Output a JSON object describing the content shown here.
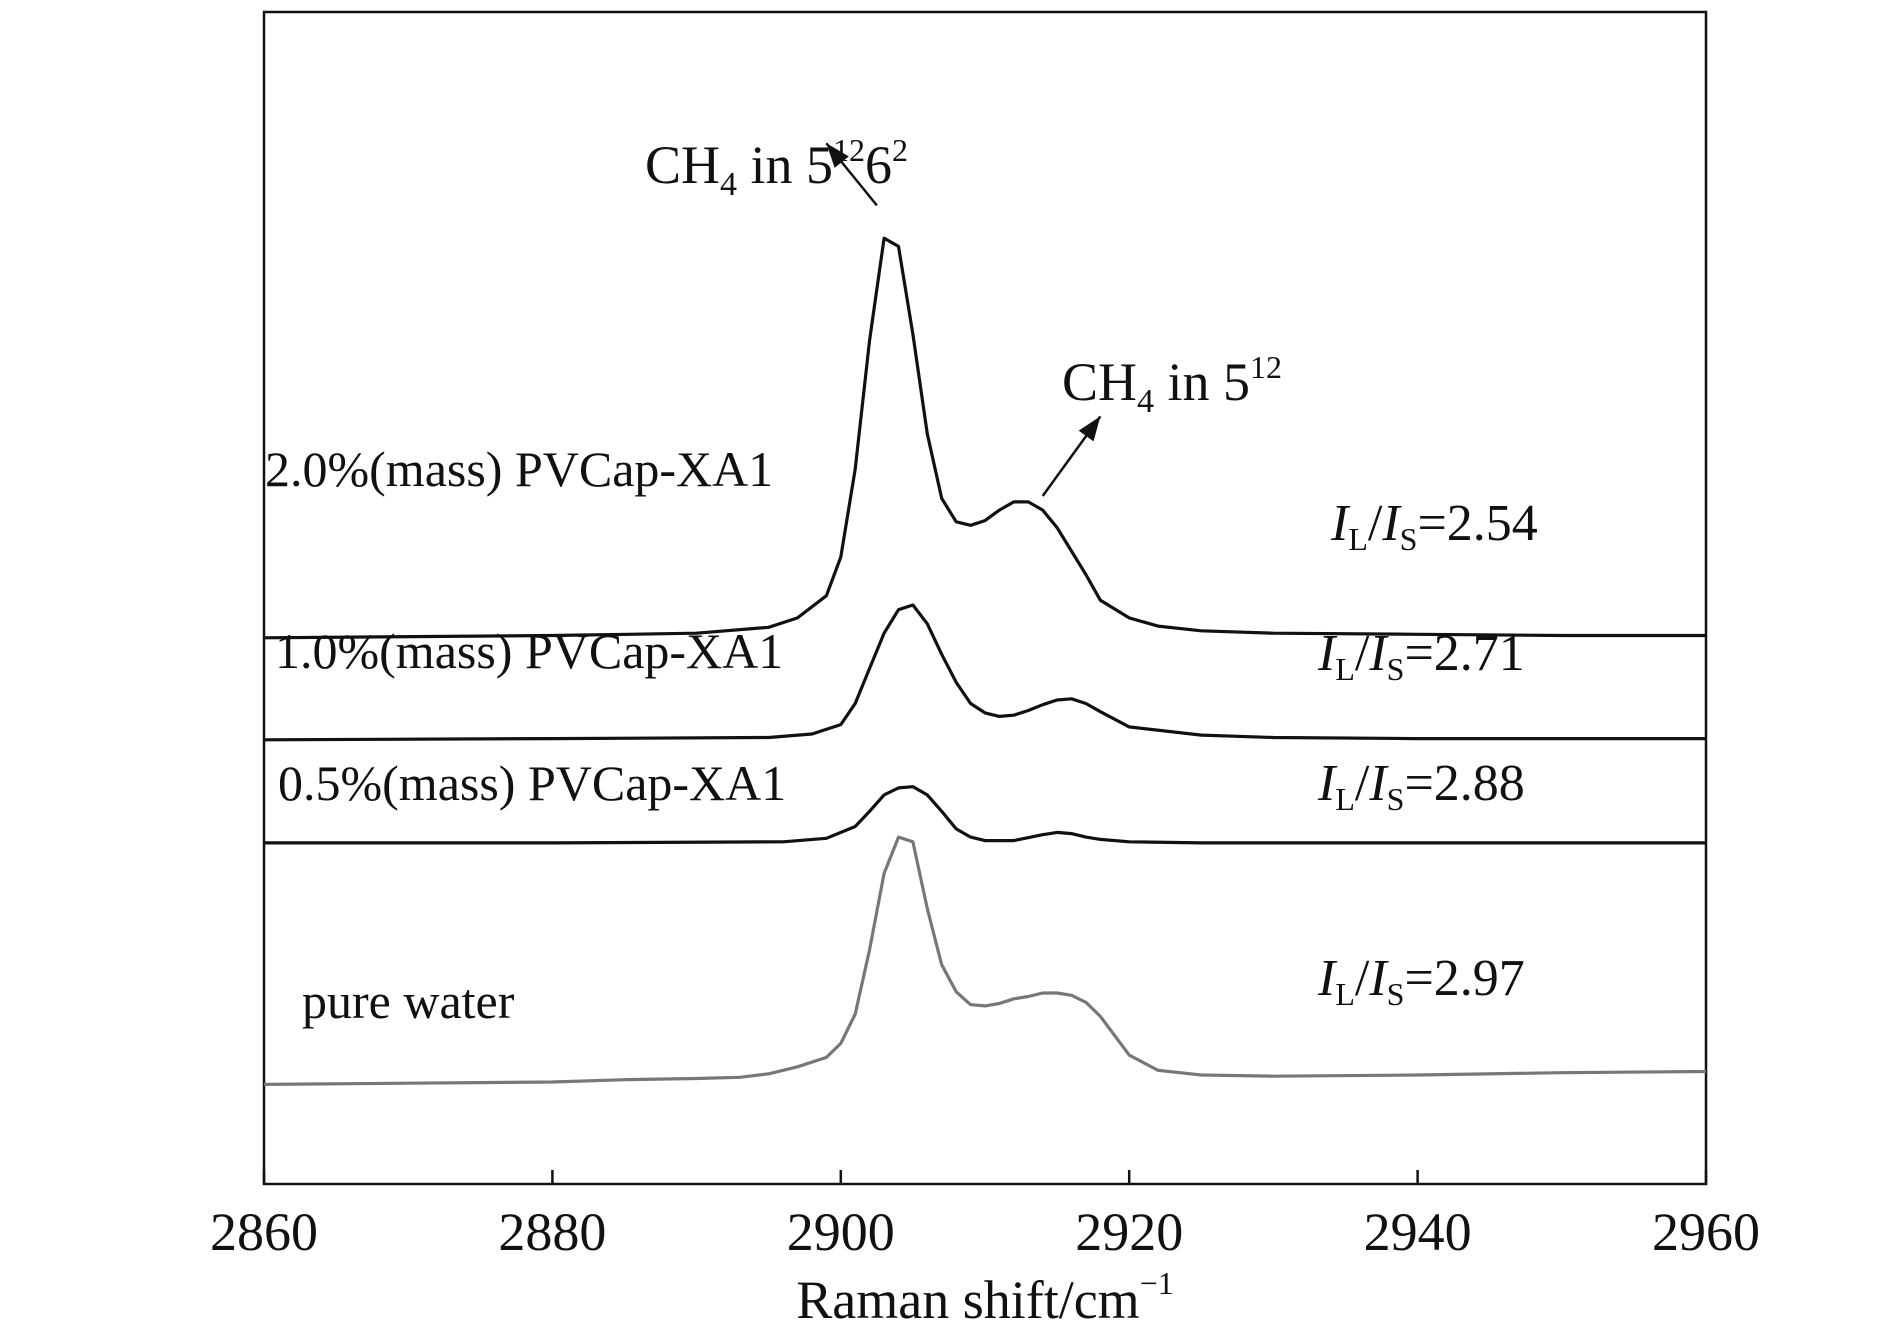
{
  "chart_data": {
    "type": "line",
    "title": "",
    "xlabel": "Raman shift/cm",
    "xlabel_superscript": "−1",
    "ylabel": "",
    "xlim": [
      2860,
      2960
    ],
    "ylim": [
      0,
      1
    ],
    "xticks": [
      2860,
      2880,
      2900,
      2920,
      2940,
      2960
    ],
    "xtick_labels": [
      "2860",
      "2880",
      "2900",
      "2920",
      "2940",
      "2960"
    ],
    "grid": false,
    "series": [
      {
        "name": "2.0%(mass) PVCap-XA1",
        "color": "#111111",
        "ratio_prefix": {
          "I1": "I",
          "sub1": "L",
          "slash": "/",
          "I2": "I",
          "sub2": "S"
        },
        "ratio_value": "=2.54",
        "x": [
          2860,
          2880,
          2890,
          2895,
          2897,
          2899,
          2900,
          2901,
          2902,
          2903,
          2904,
          2905,
          2906,
          2907,
          2908,
          2909,
          2910,
          2911,
          2912,
          2913,
          2914,
          2915,
          2916,
          2917,
          2918,
          2920,
          2922,
          2925,
          2930,
          2940,
          2950,
          2960
        ],
        "y": [
          0.466,
          0.468,
          0.47,
          0.475,
          0.483,
          0.502,
          0.535,
          0.61,
          0.72,
          0.807,
          0.8,
          0.725,
          0.64,
          0.585,
          0.565,
          0.562,
          0.566,
          0.575,
          0.582,
          0.582,
          0.575,
          0.56,
          0.54,
          0.52,
          0.498,
          0.483,
          0.476,
          0.472,
          0.47,
          0.469,
          0.468,
          0.468
        ]
      },
      {
        "name": "1.0%(mass) PVCap-XA1",
        "color": "#111111",
        "ratio_prefix": {
          "I1": "I",
          "sub1": "L",
          "slash": "/",
          "I2": "I",
          "sub2": "S"
        },
        "ratio_value": "=2.71",
        "x": [
          2860,
          2880,
          2895,
          2898,
          2900,
          2901,
          2902,
          2903,
          2904,
          2905,
          2906,
          2907,
          2908,
          2909,
          2910,
          2911,
          2912,
          2913,
          2914,
          2915,
          2916,
          2917,
          2918,
          2920,
          2925,
          2930,
          2940,
          2960
        ],
        "y": [
          0.379,
          0.38,
          0.381,
          0.384,
          0.392,
          0.41,
          0.44,
          0.47,
          0.49,
          0.494,
          0.478,
          0.452,
          0.428,
          0.41,
          0.402,
          0.399,
          0.4,
          0.404,
          0.409,
          0.413,
          0.414,
          0.41,
          0.403,
          0.39,
          0.383,
          0.381,
          0.38,
          0.38
        ]
      },
      {
        "name": "0.5%(mass) PVCap-XA1",
        "color": "#111111",
        "ratio_prefix": {
          "I1": "I",
          "sub1": "L",
          "slash": "/",
          "I2": "I",
          "sub2": "S"
        },
        "ratio_value": "=2.88",
        "x": [
          2860,
          2880,
          2896,
          2899,
          2901,
          2902,
          2903,
          2904,
          2905,
          2906,
          2907,
          2908,
          2909,
          2910,
          2912,
          2914,
          2915,
          2916,
          2917,
          2918,
          2920,
          2925,
          2930,
          2960
        ],
        "y": [
          0.291,
          0.291,
          0.292,
          0.295,
          0.305,
          0.318,
          0.332,
          0.338,
          0.339,
          0.332,
          0.318,
          0.303,
          0.296,
          0.293,
          0.293,
          0.298,
          0.3,
          0.299,
          0.296,
          0.294,
          0.292,
          0.291,
          0.291,
          0.291
        ]
      },
      {
        "name": "pure water",
        "color": "#777777",
        "ratio_prefix": {
          "I1": "I",
          "sub1": "L",
          "slash": "/",
          "I2": "I",
          "sub2": "S"
        },
        "ratio_value": "=2.97",
        "x": [
          2860,
          2870,
          2880,
          2885,
          2890,
          2893,
          2895,
          2897,
          2899,
          2900,
          2901,
          2902,
          2903,
          2904,
          2905,
          2906,
          2907,
          2908,
          2909,
          2910,
          2911,
          2912,
          2913,
          2914,
          2915,
          2916,
          2917,
          2918,
          2920,
          2922,
          2925,
          2930,
          2940,
          2950,
          2960
        ],
        "y": [
          0.085,
          0.086,
          0.087,
          0.089,
          0.09,
          0.091,
          0.094,
          0.1,
          0.108,
          0.12,
          0.145,
          0.2,
          0.265,
          0.296,
          0.292,
          0.235,
          0.187,
          0.164,
          0.153,
          0.152,
          0.154,
          0.158,
          0.16,
          0.163,
          0.163,
          0.161,
          0.155,
          0.143,
          0.11,
          0.097,
          0.093,
          0.092,
          0.093,
          0.095,
          0.096
        ]
      }
    ],
    "annotations": [
      {
        "id": "peak-large-cage",
        "prefix": "CH",
        "sub": "4",
        "text": " in 5",
        "sup": "12",
        "text2": "6",
        "sup2": "2",
        "arrow_from": [
          2902.5,
          0.835
        ],
        "arrow_to": [
          2899,
          0.888
        ]
      },
      {
        "id": "peak-small-cage",
        "prefix": "CH",
        "sub": "4",
        "text": " in 5",
        "sup": "12",
        "arrow_from": [
          2914,
          0.587
        ],
        "arrow_to": [
          2918,
          0.655
        ]
      }
    ]
  }
}
